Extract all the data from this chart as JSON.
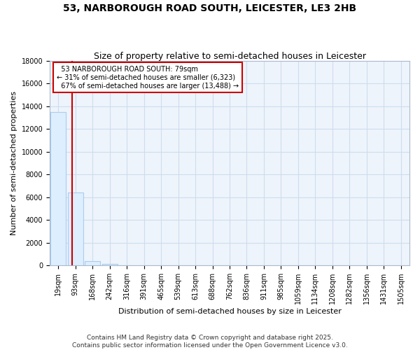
{
  "title": "53, NARBOROUGH ROAD SOUTH, LEICESTER, LE3 2HB",
  "subtitle": "Size of property relative to semi-detached houses in Leicester",
  "xlabel": "Distribution of semi-detached houses by size in Leicester",
  "ylabel": "Number of semi-detached properties",
  "categories": [
    "19sqm",
    "93sqm",
    "168sqm",
    "242sqm",
    "316sqm",
    "391sqm",
    "465sqm",
    "539sqm",
    "613sqm",
    "688sqm",
    "762sqm",
    "836sqm",
    "911sqm",
    "985sqm",
    "1059sqm",
    "1134sqm",
    "1208sqm",
    "1282sqm",
    "1356sqm",
    "1431sqm",
    "1505sqm"
  ],
  "values": [
    13500,
    6400,
    400,
    150,
    0,
    0,
    0,
    0,
    0,
    0,
    0,
    0,
    0,
    0,
    0,
    0,
    0,
    0,
    0,
    0,
    0
  ],
  "bar_color": "#ddeeff",
  "bar_edge_color": "#aaccee",
  "property_sqm": 79,
  "property_label": "53 NARBOROUGH ROAD SOUTH: 79sqm",
  "pct_smaller": 31,
  "pct_larger": 67,
  "n_smaller": 6323,
  "n_larger": 13488,
  "annotation_box_color": "#ffffff",
  "annotation_box_edge": "#cc0000",
  "red_line_color": "#cc0000",
  "grid_color": "#ccddee",
  "background_color": "#eef4fb",
  "ylim": [
    0,
    18000
  ],
  "yticks": [
    0,
    2000,
    4000,
    6000,
    8000,
    10000,
    12000,
    14000,
    16000,
    18000
  ],
  "footer": "Contains HM Land Registry data © Crown copyright and database right 2025.\nContains public sector information licensed under the Open Government Licence v3.0.",
  "title_fontsize": 10,
  "subtitle_fontsize": 9,
  "annotation_fontsize": 7,
  "tick_fontsize": 7,
  "ylabel_fontsize": 8,
  "xlabel_fontsize": 8,
  "footer_fontsize": 6.5
}
